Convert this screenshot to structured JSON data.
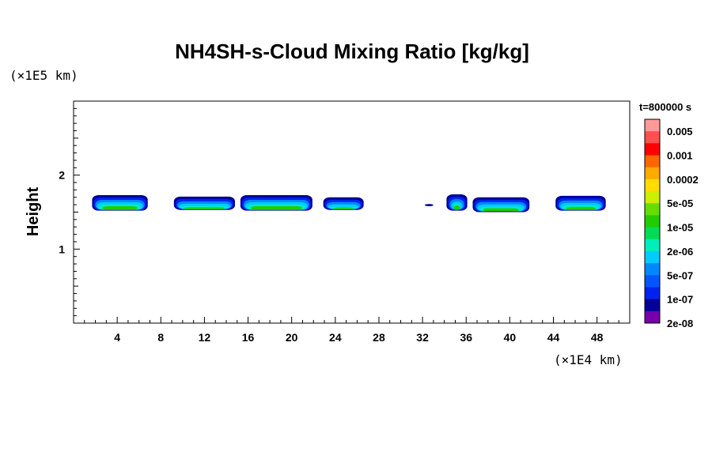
{
  "chart_data": {
    "type": "heatmap",
    "title": "NH4SH-s-Cloud Mixing Ratio [kg/kg]",
    "ylabel": "Height",
    "xlabel": "",
    "x_unit": "(×1E4 km)",
    "y_unit": "(×1E5 km)",
    "time_label": "t=800000 s",
    "xlim": [
      0,
      51
    ],
    "ylim": [
      0,
      3
    ],
    "x_ticks": [
      "4",
      "8",
      "12",
      "16",
      "20",
      "24",
      "28",
      "32",
      "36",
      "40",
      "44",
      "48"
    ],
    "x_tick_values": [
      4,
      8,
      12,
      16,
      20,
      24,
      28,
      32,
      36,
      40,
      44,
      48
    ],
    "y_ticks": [
      "1",
      "2"
    ],
    "y_tick_values": [
      1,
      2
    ],
    "colorbar": {
      "labels": [
        "0.005",
        "0.001",
        "0.0002",
        "5e-05",
        "1e-05",
        "2e-06",
        "5e-07",
        "1e-07",
        "2e-08"
      ],
      "colors": [
        "#ff9999",
        "#ff5050",
        "#ff0000",
        "#ff6600",
        "#ffaa00",
        "#ffdd00",
        "#ccee00",
        "#66dd00",
        "#22cc00",
        "#00dd55",
        "#00eebb",
        "#00ccff",
        "#0088ff",
        "#0055ff",
        "#0022ee",
        "#000099",
        "#7700aa"
      ]
    },
    "clouds": [
      {
        "x0": 1.7,
        "x1": 6.8,
        "ybase": 1.52,
        "ytop": 1.73
      },
      {
        "x0": 9.2,
        "x1": 14.8,
        "ybase": 1.53,
        "ytop": 1.71
      },
      {
        "x0": 15.3,
        "x1": 21.9,
        "ybase": 1.52,
        "ytop": 1.73
      },
      {
        "x0": 22.9,
        "x1": 26.6,
        "ybase": 1.53,
        "ytop": 1.7
      },
      {
        "x0": 32.2,
        "x1": 33.0,
        "ybase": 1.58,
        "ytop": 1.61
      },
      {
        "x0": 34.2,
        "x1": 36.1,
        "ybase": 1.52,
        "ytop": 1.74
      },
      {
        "x0": 36.6,
        "x1": 41.8,
        "ybase": 1.5,
        "ytop": 1.7
      },
      {
        "x0": 44.2,
        "x1": 48.8,
        "ybase": 1.52,
        "ytop": 1.72
      }
    ]
  }
}
